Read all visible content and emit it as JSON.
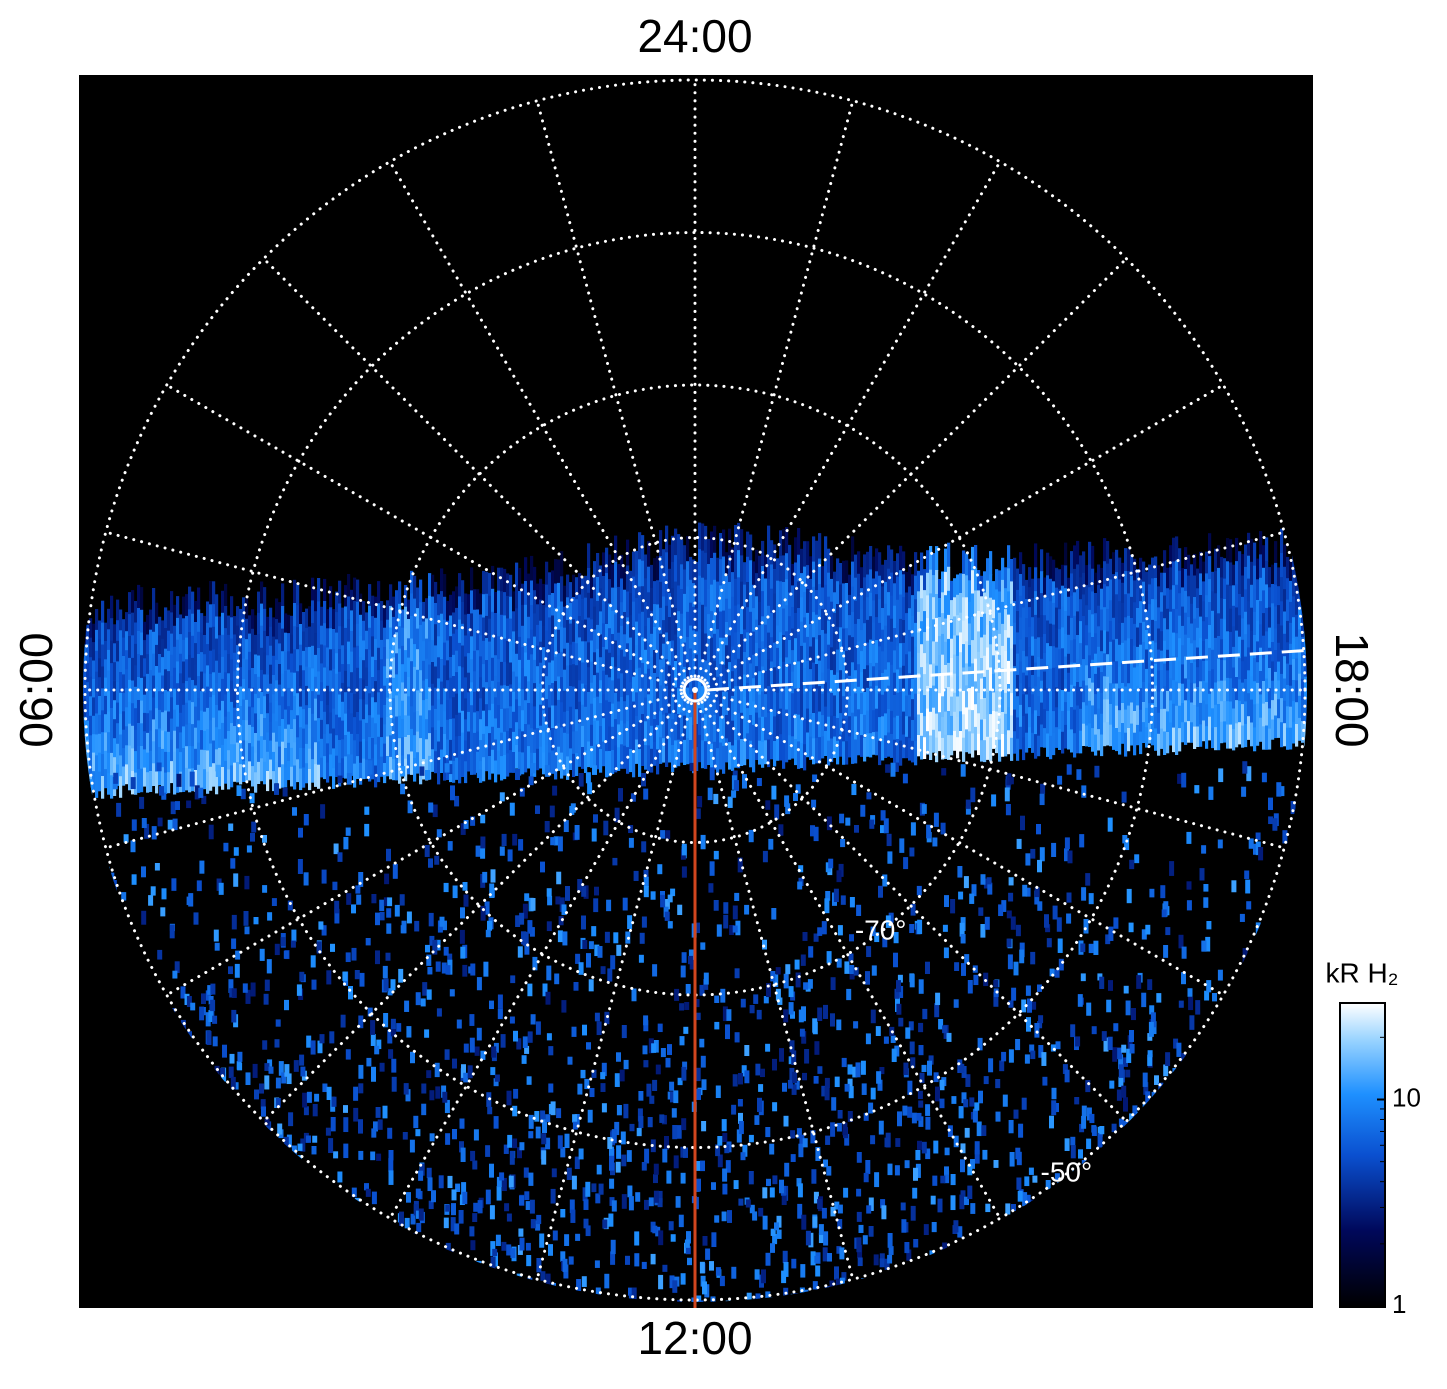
{
  "chart_data": {
    "type": "polar-image",
    "lt_labels": {
      "top": "24:00",
      "left": "06:00",
      "right": "18:00",
      "bottom": "12:00"
    },
    "rgrid": [
      -80,
      -70,
      -60,
      -50
    ],
    "rlim": [
      -90,
      -50
    ],
    "lt_grid_step": 1,
    "rticks": [
      {
        "value": -70,
        "label": "-70°"
      },
      {
        "value": -50,
        "label": "-50°"
      }
    ],
    "colorbar": {
      "label": "kR H₂",
      "scale": "log",
      "zlim": [
        1,
        29
      ],
      "ticks": [
        1,
        10
      ]
    }
  }
}
